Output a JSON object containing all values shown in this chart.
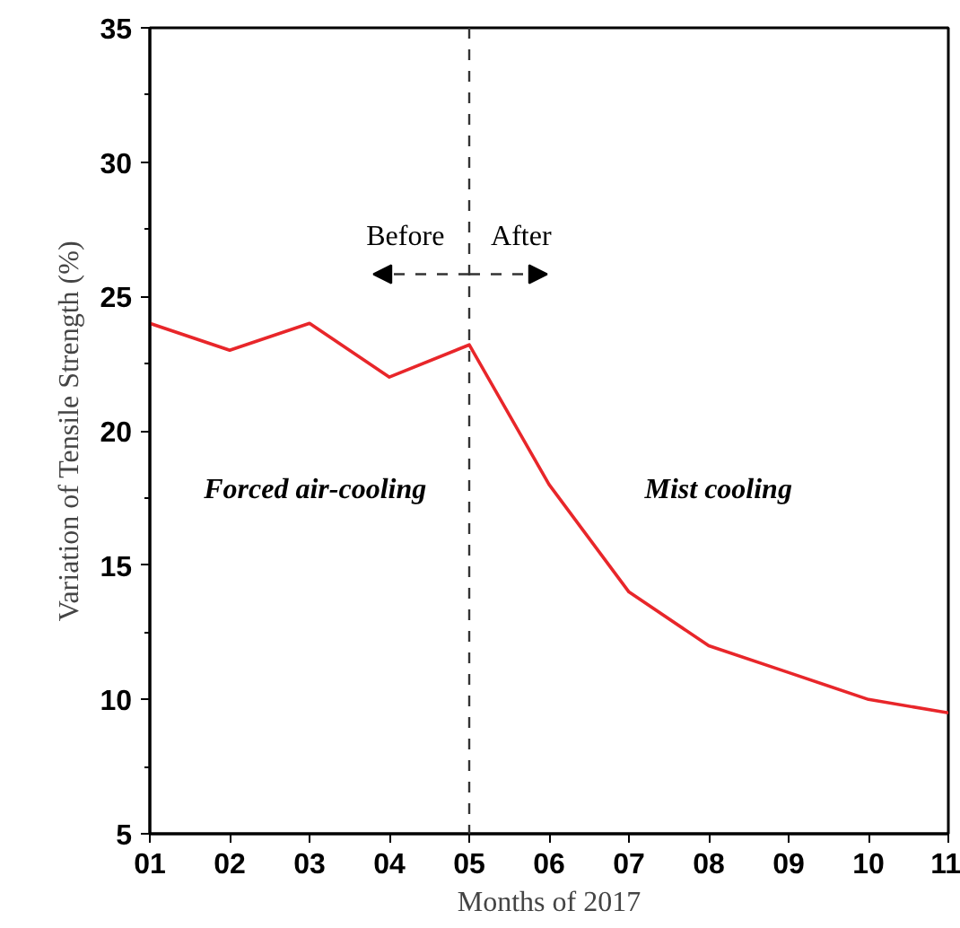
{
  "chart_data": {
    "type": "line",
    "xlabel": "Months of 2017",
    "ylabel": "Variation of Tensile Strength (%)",
    "x": [
      1,
      2,
      3,
      4,
      5,
      6,
      7,
      8,
      9,
      10,
      11
    ],
    "series": [
      {
        "color": "#e8262a",
        "values": [
          24.0,
          23.0,
          24.0,
          22.0,
          23.2,
          18.0,
          14.0,
          12.0,
          11.0,
          10.0,
          9.5
        ]
      }
    ],
    "xlim": [
      1,
      11
    ],
    "xticks": [
      {
        "value": 1,
        "label": "01"
      },
      {
        "value": 2,
        "label": "02"
      },
      {
        "value": 3,
        "label": "03"
      },
      {
        "value": 4,
        "label": "04"
      },
      {
        "value": 5,
        "label": "05"
      },
      {
        "value": 6,
        "label": "06"
      },
      {
        "value": 7,
        "label": "07"
      },
      {
        "value": 8,
        "label": "08"
      },
      {
        "value": 9,
        "label": "09"
      },
      {
        "value": 10,
        "label": "10"
      },
      {
        "value": 11,
        "label": "11"
      }
    ],
    "ylim": [
      5,
      35
    ],
    "yticks": [
      5,
      10,
      15,
      20,
      25,
      30,
      35
    ],
    "ref_lines": [
      {
        "axis": "x",
        "value": 5,
        "color": "#333333",
        "line_style": "dashed"
      }
    ],
    "annotations": [
      "Forced air-cooling",
      "Mist cooling",
      "Before",
      "After"
    ],
    "grid": false,
    "marker": "none",
    "line_style": "solid"
  }
}
